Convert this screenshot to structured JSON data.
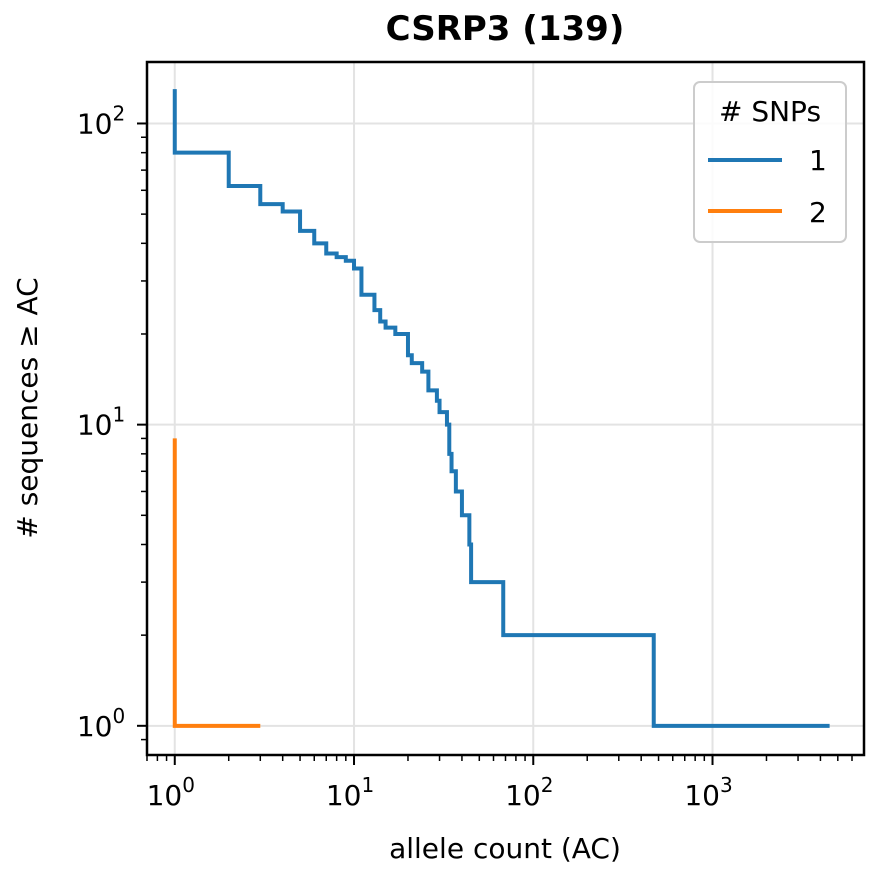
{
  "chart_data": {
    "type": "line",
    "title": "CSRP3 (139)",
    "xlabel": "allele count (AC)",
    "ylabel": "# sequences ≥ AC",
    "xscale": "log",
    "yscale": "log",
    "xlim": [
      0.7,
      7000
    ],
    "ylim": [
      0.8,
      160
    ],
    "grid": true,
    "x_tick_labels": [
      {
        "base": "10",
        "exp": "0",
        "value": 1
      },
      {
        "base": "10",
        "exp": "1",
        "value": 10
      },
      {
        "base": "10",
        "exp": "2",
        "value": 100
      },
      {
        "base": "10",
        "exp": "3",
        "value": 1000
      }
    ],
    "y_tick_labels": [
      {
        "base": "10",
        "exp": "0",
        "value": 1
      },
      {
        "base": "10",
        "exp": "1",
        "value": 10
      },
      {
        "base": "10",
        "exp": "2",
        "value": 100
      }
    ],
    "legend": {
      "title": "# SNPs",
      "placement": "top-right"
    },
    "series": [
      {
        "name": "1",
        "color": "#1f77b4",
        "x": [
          1,
          1,
          2,
          3,
          4,
          5,
          6,
          7,
          8,
          9,
          10,
          11,
          13,
          14,
          15,
          17,
          20,
          21,
          24,
          26,
          29,
          30,
          33,
          34,
          35,
          37,
          40,
          44,
          45,
          47,
          68,
          470,
          4500
        ],
        "y": [
          130,
          80,
          62,
          54,
          51,
          44,
          40,
          37,
          36,
          35,
          33,
          27,
          24,
          22,
          21,
          20,
          17,
          16,
          15,
          13,
          12,
          11,
          10,
          8,
          7,
          6,
          5,
          4,
          3,
          3,
          2,
          1,
          1
        ]
      },
      {
        "name": "2",
        "color": "#ff7f0e",
        "x": [
          1,
          1,
          3
        ],
        "y": [
          9,
          1,
          1
        ]
      }
    ]
  }
}
